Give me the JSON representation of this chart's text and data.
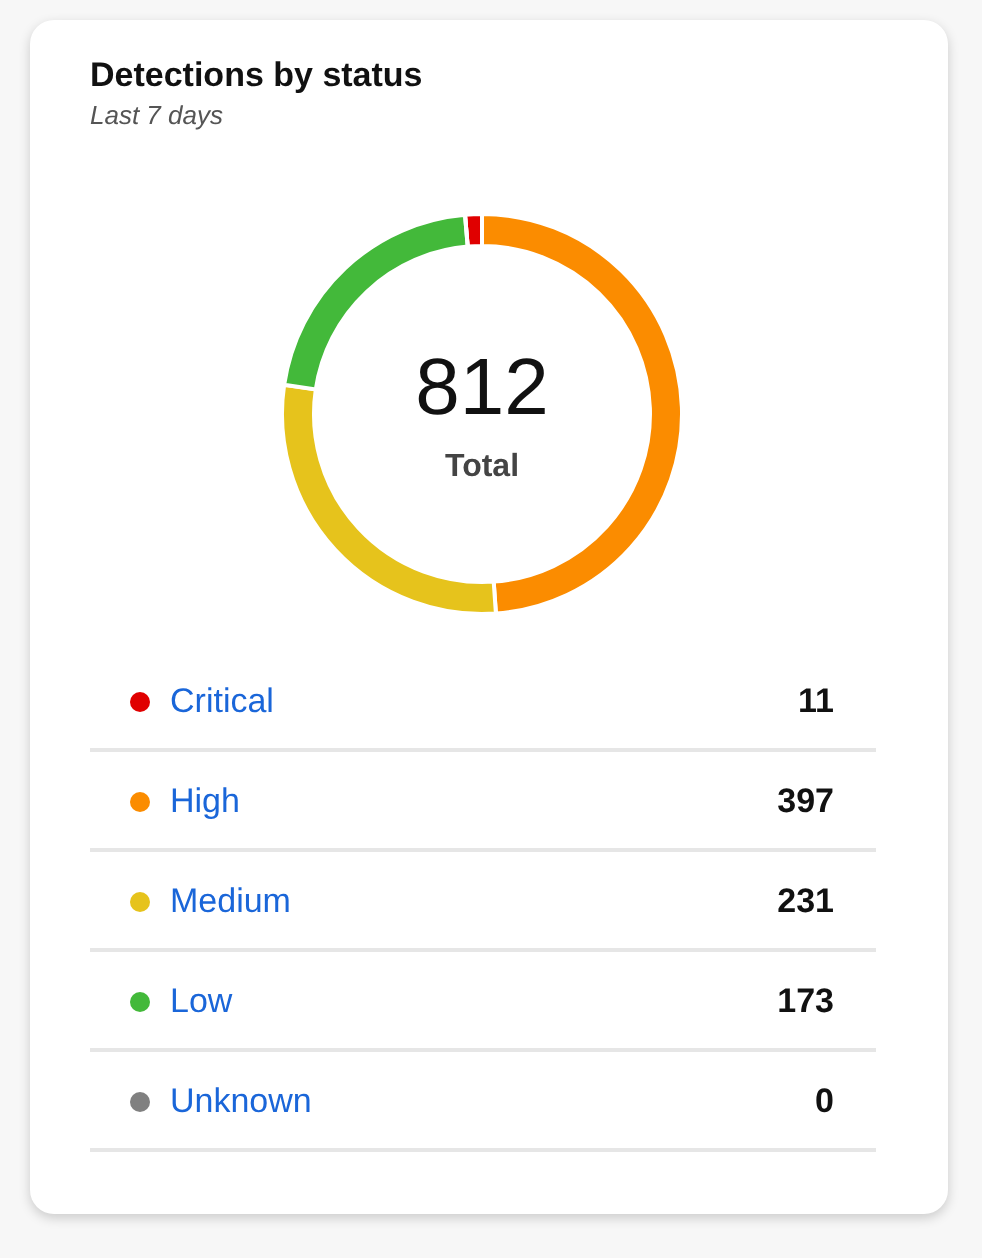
{
  "chart_data": {
    "type": "donut",
    "title": "Detections by status",
    "subtitle": "Last 7 days",
    "categories": [
      "Critical",
      "High",
      "Medium",
      "Low",
      "Unknown"
    ],
    "values": [
      11,
      397,
      231,
      173,
      0
    ],
    "colors": [
      "#e00000",
      "#fb8c00",
      "#e6c31c",
      "#43b93a",
      "#808080"
    ],
    "annotations": [
      "812",
      "Total"
    ],
    "value_labels": [
      "11",
      "397",
      "231",
      "173",
      "0"
    ],
    "legend": "bottom"
  }
}
